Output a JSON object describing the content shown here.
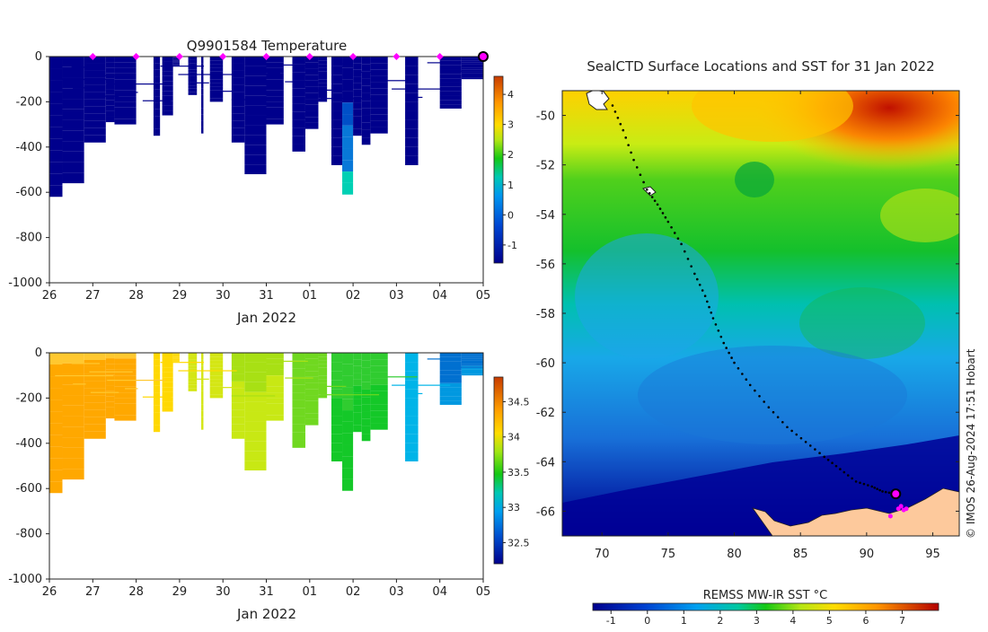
{
  "chart_data": [
    {
      "type": "heatmap",
      "id": "temperature",
      "title": "Q9901584  Temperature",
      "xlabel": "Jan 2022",
      "ylabel": "",
      "x_tick_labels": [
        "26",
        "27",
        "28",
        "29",
        "30",
        "31",
        "01",
        "02",
        "03",
        "04",
        "05"
      ],
      "xlim": [
        0,
        10
      ],
      "ylim": [
        -1000,
        0
      ],
      "y_ticks": [
        0,
        -200,
        -400,
        -600,
        -800,
        -1000
      ],
      "colorbar": {
        "min": -1.6,
        "max": 4.6,
        "ticks": [
          4,
          3,
          2,
          1,
          0,
          -1
        ]
      },
      "surface_markers_days": [
        1,
        2,
        3,
        4,
        5,
        6,
        7,
        8,
        9,
        10
      ],
      "latest_profile_day": 10
    },
    {
      "type": "heatmap",
      "id": "salinity",
      "title": "",
      "xlabel": "Jan 2022",
      "ylabel": "",
      "x_tick_labels": [
        "26",
        "27",
        "28",
        "29",
        "30",
        "31",
        "01",
        "02",
        "03",
        "04",
        "05"
      ],
      "xlim": [
        0,
        10
      ],
      "ylim": [
        -1000,
        0
      ],
      "y_ticks": [
        0,
        -200,
        -400,
        -600,
        -800,
        -1000
      ],
      "colorbar": {
        "min": 32.2,
        "max": 34.85,
        "ticks": [
          34.5,
          34,
          33.5,
          33,
          32.5
        ]
      }
    },
    {
      "type": "map",
      "id": "sst-map",
      "title": "SealCTD Surface Locations and SST for 31 Jan 2022",
      "xlim": [
        67,
        97
      ],
      "ylim": [
        -67,
        -49
      ],
      "x_ticks": [
        70,
        75,
        80,
        85,
        90,
        95
      ],
      "y_ticks": [
        -50,
        -52,
        -54,
        -56,
        -58,
        -60,
        -62,
        -64,
        -66
      ],
      "colorbar": {
        "label": "REMSS MW-IR SST °C",
        "min": -1.5,
        "max": 8,
        "ticks": [
          -1,
          0,
          1,
          2,
          3,
          4,
          5,
          6,
          7
        ]
      },
      "current_position": {
        "lon": 92.2,
        "lat": -65.3
      },
      "recent_positions": [
        {
          "lon": 92.4,
          "lat": -65.9
        },
        {
          "lon": 92.8,
          "lat": -65.95
        },
        {
          "lon": 92.6,
          "lat": -65.8
        },
        {
          "lon": 91.8,
          "lat": -66.2
        },
        {
          "lon": 93.0,
          "lat": -65.9
        }
      ],
      "track": [
        {
          "lon": 70.8,
          "lat": -49.6
        },
        {
          "lon": 71.6,
          "lat": -50.6
        },
        {
          "lon": 72.4,
          "lat": -51.8
        },
        {
          "lon": 73.4,
          "lat": -53.0
        },
        {
          "lon": 74.2,
          "lat": -53.6
        },
        {
          "lon": 75.0,
          "lat": -54.3
        },
        {
          "lon": 76.0,
          "lat": -55.2
        },
        {
          "lon": 77.0,
          "lat": -56.4
        },
        {
          "lon": 77.8,
          "lat": -57.3
        },
        {
          "lon": 78.4,
          "lat": -58.2
        },
        {
          "lon": 79.2,
          "lat": -59.2
        },
        {
          "lon": 80.0,
          "lat": -60.0
        },
        {
          "lon": 81.2,
          "lat": -60.9
        },
        {
          "lon": 82.6,
          "lat": -61.8
        },
        {
          "lon": 84.0,
          "lat": -62.6
        },
        {
          "lon": 85.4,
          "lat": -63.2
        },
        {
          "lon": 86.8,
          "lat": -63.8
        },
        {
          "lon": 88.0,
          "lat": -64.3
        },
        {
          "lon": 89.2,
          "lat": -64.8
        },
        {
          "lon": 90.4,
          "lat": -65.0
        },
        {
          "lon": 91.2,
          "lat": -65.2
        },
        {
          "lon": 92.2,
          "lat": -65.3
        }
      ]
    }
  ],
  "credit": "© IMOS 26-Aug-2024 17:51 Hobart"
}
